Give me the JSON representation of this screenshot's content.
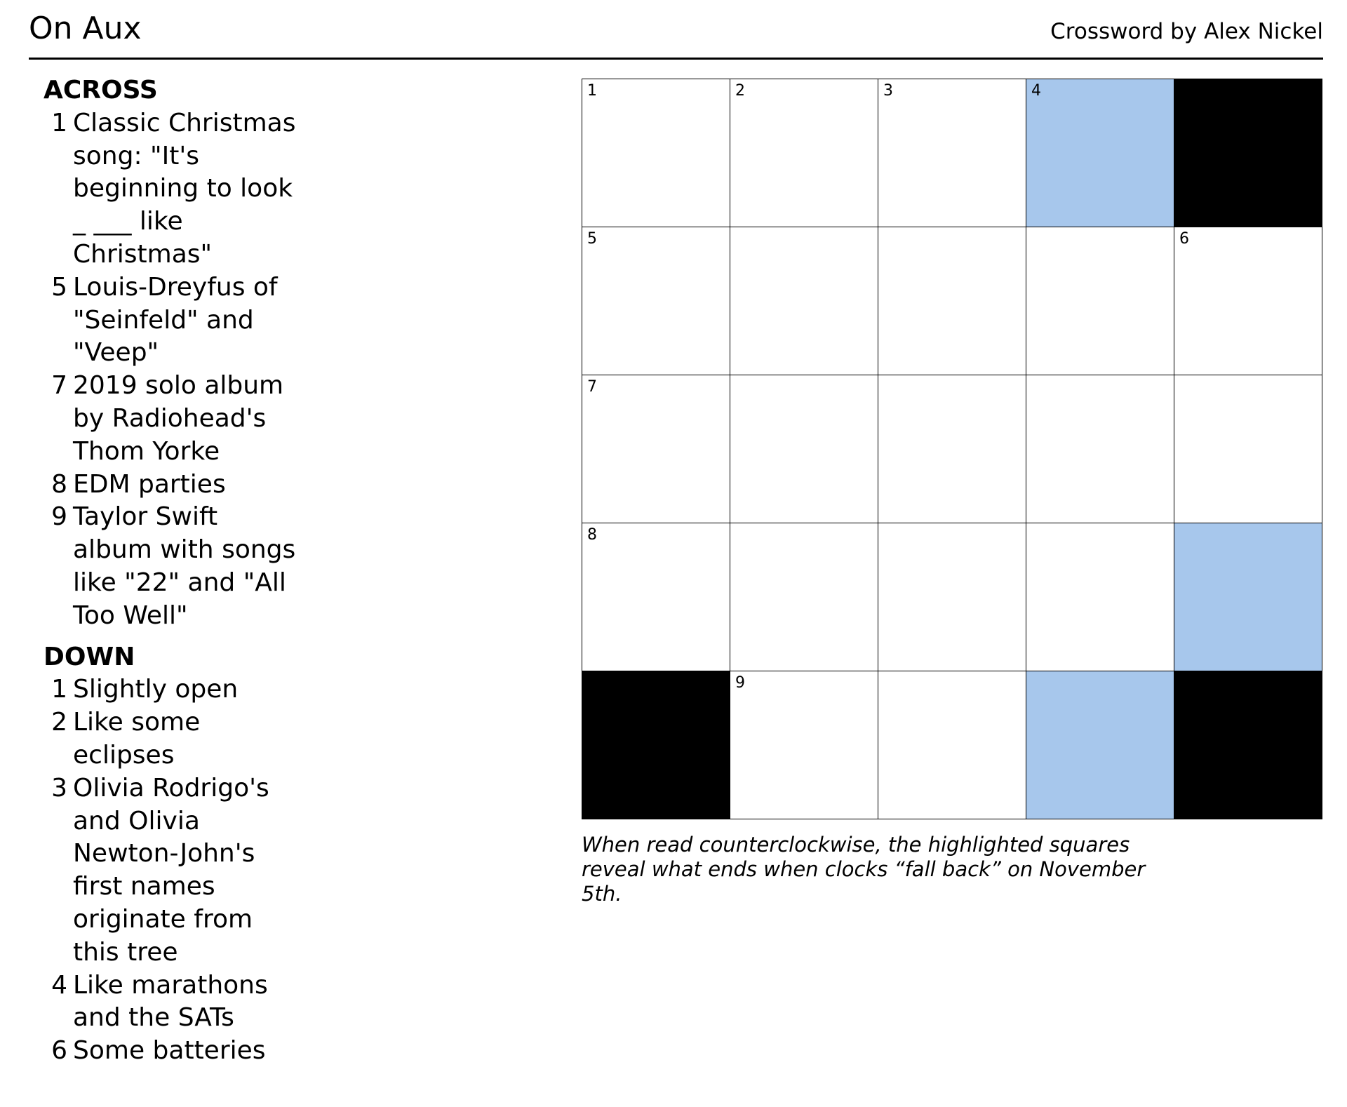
{
  "header": {
    "title": "On Aux",
    "byline": "Crossword by Alex Nickel"
  },
  "clues": {
    "across_title": "ACROSS",
    "across": [
      {
        "num": "1",
        "text": "Classic Christmas song: \"It's beginning to look _ ___ like Christmas\""
      },
      {
        "num": "5",
        "text": "Louis-Dreyfus of \"Seinfeld\" and \"Veep\""
      },
      {
        "num": "7",
        "text": "2019 solo album by Radiohead's Thom Yorke"
      },
      {
        "num": "8",
        "text": "EDM parties"
      },
      {
        "num": "9",
        "text": "Taylor Swift album with songs like \"22\" and \"All Too Well\""
      }
    ],
    "down_title": "DOWN",
    "down": [
      {
        "num": "1",
        "text": "Slightly open"
      },
      {
        "num": "2",
        "text": "Like some eclipses"
      },
      {
        "num": "3",
        "text": "Olivia Rodrigo's and Olivia Newton-John's first names originate from this tree"
      },
      {
        "num": "4",
        "text": "Like marathons and the SATs"
      },
      {
        "num": "6",
        "text": "Some batteries"
      }
    ]
  },
  "grid": {
    "rows": [
      [
        {
          "type": "open",
          "num": "1"
        },
        {
          "type": "open",
          "num": "2"
        },
        {
          "type": "open",
          "num": "3"
        },
        {
          "type": "highlight",
          "num": "4"
        },
        {
          "type": "block",
          "num": ""
        }
      ],
      [
        {
          "type": "open",
          "num": "5"
        },
        {
          "type": "open",
          "num": ""
        },
        {
          "type": "open",
          "num": ""
        },
        {
          "type": "open",
          "num": ""
        },
        {
          "type": "open",
          "num": "6"
        }
      ],
      [
        {
          "type": "open",
          "num": "7"
        },
        {
          "type": "open",
          "num": ""
        },
        {
          "type": "open",
          "num": ""
        },
        {
          "type": "open",
          "num": ""
        },
        {
          "type": "open",
          "num": ""
        }
      ],
      [
        {
          "type": "open",
          "num": "8"
        },
        {
          "type": "open",
          "num": ""
        },
        {
          "type": "open",
          "num": ""
        },
        {
          "type": "open",
          "num": ""
        },
        {
          "type": "highlight",
          "num": ""
        }
      ],
      [
        {
          "type": "block",
          "num": ""
        },
        {
          "type": "open",
          "num": "9"
        },
        {
          "type": "open",
          "num": ""
        },
        {
          "type": "highlight",
          "num": ""
        },
        {
          "type": "block",
          "num": ""
        }
      ]
    ]
  },
  "note": "When read counterclockwise, the highlighted squares reveal what ends when clocks “fall back” on November 5th.",
  "colors": {
    "highlight": "#a7c7ec",
    "block": "#000000",
    "open": "#ffffff"
  }
}
